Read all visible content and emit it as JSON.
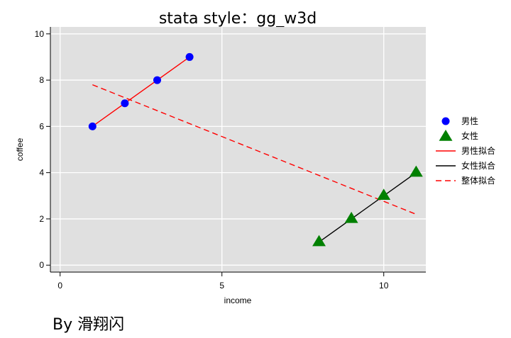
{
  "chart_data": {
    "type": "scatter",
    "title": "stata style：gg_w3d",
    "xlabel": "income",
    "ylabel": "coffee",
    "xlim": [
      -0.3,
      11.3
    ],
    "ylim": [
      -0.3,
      10.3
    ],
    "xticks": [
      0,
      5,
      10
    ],
    "yticks": [
      0,
      2,
      4,
      6,
      8,
      10
    ],
    "grid": true,
    "legend_position": "right",
    "series": [
      {
        "name": "男性",
        "kind": "points",
        "marker": "circle",
        "color": "#0000ff",
        "x": [
          1,
          2,
          3,
          4
        ],
        "y": [
          6,
          7,
          8,
          9
        ]
      },
      {
        "name": "女性",
        "kind": "points",
        "marker": "triangle",
        "color": "#008000",
        "x": [
          8,
          9,
          10,
          11
        ],
        "y": [
          1,
          2,
          3,
          4
        ]
      },
      {
        "name": "男性拟合",
        "kind": "line",
        "dash": "solid",
        "color": "#ff0000",
        "x": [
          1,
          4
        ],
        "y": [
          6,
          9
        ]
      },
      {
        "name": "女性拟合",
        "kind": "line",
        "dash": "solid",
        "color": "#000000",
        "x": [
          8,
          11
        ],
        "y": [
          1,
          4
        ]
      },
      {
        "name": "整体拟合",
        "kind": "line",
        "dash": "dashed",
        "color": "#ff0000",
        "x": [
          1,
          11
        ],
        "y": [
          7.8,
          2.2
        ]
      }
    ]
  },
  "footer": {
    "credit": "By 滑翔闪"
  }
}
